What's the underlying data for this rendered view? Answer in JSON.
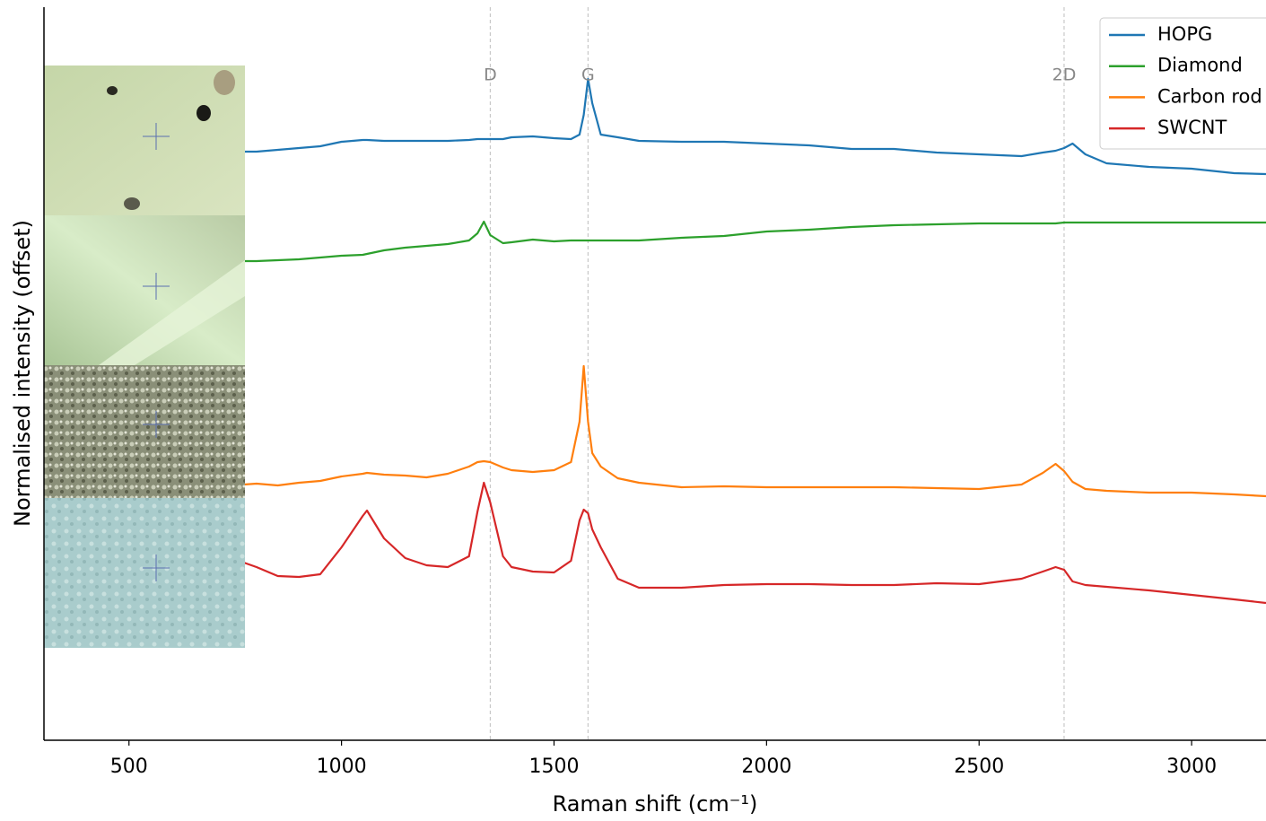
{
  "chart_data": {
    "type": "line",
    "xlabel": "Raman shift (cm⁻¹)",
    "ylabel": "Normalised intensity (offset)",
    "xlim": [
      300,
      3175
    ],
    "ylim": [
      0,
      8.17
    ],
    "xticks": [
      500,
      1000,
      1500,
      2000,
      2500,
      3000
    ],
    "legend": "upper right",
    "annotations": [
      {
        "label": "D",
        "x": 1350
      },
      {
        "label": "G",
        "x": 1580
      },
      {
        "label": "2D",
        "x": 2700
      }
    ],
    "x": [
      770,
      800,
      850,
      900,
      950,
      1000,
      1050,
      1060,
      1100,
      1150,
      1200,
      1250,
      1300,
      1320,
      1335,
      1350,
      1380,
      1400,
      1450,
      1500,
      1540,
      1560,
      1570,
      1580,
      1590,
      1610,
      1650,
      1700,
      1800,
      1900,
      2000,
      2100,
      2200,
      2300,
      2400,
      2500,
      2600,
      2650,
      2680,
      2700,
      2720,
      2750,
      2800,
      2900,
      3000,
      3100,
      3175
    ],
    "series": [
      {
        "name": "HOPG",
        "color": "#1f77b4",
        "values": [
          6.56,
          6.56,
          6.58,
          6.6,
          6.62,
          6.67,
          6.69,
          6.69,
          6.68,
          6.68,
          6.68,
          6.68,
          6.69,
          6.7,
          6.7,
          6.7,
          6.7,
          6.72,
          6.73,
          6.71,
          6.7,
          6.75,
          6.97,
          7.37,
          7.1,
          6.75,
          6.72,
          6.68,
          6.67,
          6.67,
          6.65,
          6.63,
          6.59,
          6.59,
          6.55,
          6.53,
          6.51,
          6.55,
          6.57,
          6.6,
          6.65,
          6.53,
          6.43,
          6.39,
          6.37,
          6.32,
          6.31
        ]
      },
      {
        "name": "Diamond",
        "color": "#2ca02c",
        "values": [
          5.34,
          5.34,
          5.35,
          5.36,
          5.38,
          5.4,
          5.41,
          5.42,
          5.46,
          5.49,
          5.51,
          5.53,
          5.57,
          5.65,
          5.78,
          5.63,
          5.54,
          5.55,
          5.58,
          5.56,
          5.57,
          5.57,
          5.57,
          5.57,
          5.57,
          5.57,
          5.57,
          5.57,
          5.6,
          5.62,
          5.67,
          5.69,
          5.72,
          5.74,
          5.75,
          5.76,
          5.76,
          5.76,
          5.76,
          5.77,
          5.77,
          5.77,
          5.77,
          5.77,
          5.77,
          5.77,
          5.77
        ]
      },
      {
        "name": "Carbon rod",
        "color": "#ff7f0e",
        "values": [
          2.85,
          2.86,
          2.84,
          2.87,
          2.89,
          2.94,
          2.97,
          2.98,
          2.96,
          2.95,
          2.93,
          2.97,
          3.05,
          3.1,
          3.11,
          3.1,
          3.04,
          3.01,
          2.99,
          3.01,
          3.1,
          3.55,
          4.17,
          3.55,
          3.2,
          3.05,
          2.92,
          2.87,
          2.82,
          2.83,
          2.82,
          2.82,
          2.82,
          2.82,
          2.81,
          2.8,
          2.85,
          2.98,
          3.08,
          3.0,
          2.88,
          2.8,
          2.78,
          2.76,
          2.76,
          2.74,
          2.72
        ]
      },
      {
        "name": "SWCNT",
        "color": "#d62728",
        "values": [
          1.98,
          1.93,
          1.83,
          1.82,
          1.85,
          2.15,
          2.5,
          2.56,
          2.25,
          2.03,
          1.95,
          1.93,
          2.05,
          2.55,
          2.87,
          2.65,
          2.05,
          1.93,
          1.88,
          1.87,
          2.0,
          2.45,
          2.57,
          2.53,
          2.35,
          2.15,
          1.8,
          1.7,
          1.7,
          1.73,
          1.74,
          1.74,
          1.73,
          1.73,
          1.75,
          1.74,
          1.8,
          1.88,
          1.93,
          1.9,
          1.77,
          1.73,
          1.71,
          1.67,
          1.62,
          1.57,
          1.53
        ]
      }
    ]
  }
}
